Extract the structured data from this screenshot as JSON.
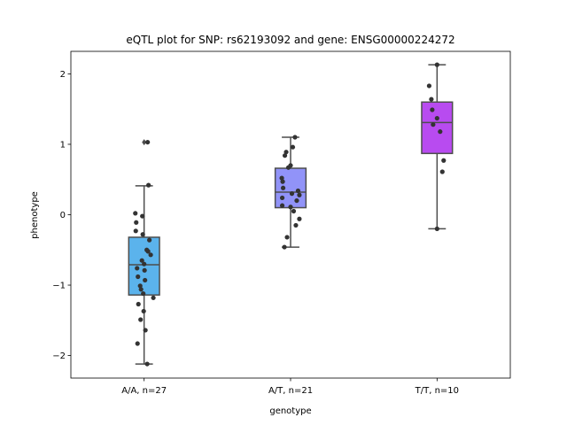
{
  "chart_data": {
    "type": "box",
    "title": "eQTL plot for SNP: rs62193092 and gene: ENSG00000224272",
    "xlabel": "genotype",
    "ylabel": "phenotype",
    "ylim": [
      -2.32,
      2.32
    ],
    "yticks": [
      {
        "value": -2,
        "label": "−2"
      },
      {
        "value": -1,
        "label": "−1"
      },
      {
        "value": 0,
        "label": "0"
      },
      {
        "value": 1,
        "label": "1"
      },
      {
        "value": 2,
        "label": "2"
      }
    ],
    "grid": false,
    "colors": {
      "line": "#4d4d4d",
      "point": "#333333"
    },
    "categories": [
      "A/A, n=27",
      "A/T, n=21",
      "T/T, n=10"
    ],
    "boxes": [
      {
        "category": "A/A, n=27",
        "color": "#5bb3ec",
        "q1": -1.14,
        "median": -0.71,
        "q3": -0.32,
        "whisker_low": -2.12,
        "whisker_high": 0.41,
        "outliers": [
          1.03
        ],
        "points": [
          [
            -0.2,
            0.02
          ],
          [
            -0.18,
            -0.11
          ],
          [
            -0.19,
            -0.23
          ],
          [
            -0.04,
            -0.02
          ],
          [
            0.1,
            0.42
          ],
          [
            0.08,
            1.03
          ],
          [
            -0.03,
            -0.28
          ],
          [
            0.12,
            -0.36
          ],
          [
            0.09,
            -0.52
          ],
          [
            0.15,
            -0.57
          ],
          [
            -0.05,
            -0.65
          ],
          [
            -0.16,
            -0.76
          ],
          [
            0.01,
            -0.79
          ],
          [
            -0.14,
            -0.88
          ],
          [
            0.02,
            -0.93
          ],
          [
            -0.09,
            -1.01
          ],
          [
            -0.07,
            -1.06
          ],
          [
            0.21,
            -1.18
          ],
          [
            -0.02,
            -1.12
          ],
          [
            -0.13,
            -1.27
          ],
          [
            -0.01,
            -1.37
          ],
          [
            -0.08,
            -1.49
          ],
          [
            0.03,
            -1.64
          ],
          [
            -0.15,
            -1.83
          ],
          [
            0.07,
            -2.12
          ],
          [
            0.0,
            -0.7
          ],
          [
            0.06,
            -0.5
          ]
        ]
      },
      {
        "category": "A/T, n=21",
        "color": "#9193f8",
        "q1": 0.1,
        "median": 0.32,
        "q3": 0.66,
        "whisker_low": -0.46,
        "whisker_high": 1.1,
        "outliers": [],
        "points": [
          [
            0.1,
            1.1
          ],
          [
            0.05,
            0.96
          ],
          [
            -0.1,
            0.89
          ],
          [
            -0.13,
            0.84
          ],
          [
            -0.05,
            0.67
          ],
          [
            0.0,
            0.7
          ],
          [
            -0.2,
            0.52
          ],
          [
            -0.18,
            0.47
          ],
          [
            -0.17,
            0.38
          ],
          [
            0.17,
            0.34
          ],
          [
            0.2,
            0.28
          ],
          [
            -0.19,
            0.24
          ],
          [
            0.14,
            0.2
          ],
          [
            -0.19,
            0.13
          ],
          [
            0.0,
            0.11
          ],
          [
            0.07,
            0.05
          ],
          [
            0.2,
            -0.06
          ],
          [
            0.12,
            -0.15
          ],
          [
            -0.08,
            -0.32
          ],
          [
            -0.14,
            -0.46
          ],
          [
            0.03,
            0.3
          ]
        ]
      },
      {
        "category": "T/T, n=10",
        "color": "#b84bf0",
        "q1": 0.87,
        "median": 1.31,
        "q3": 1.6,
        "whisker_low": -0.2,
        "whisker_high": 2.13,
        "outliers": [],
        "points": [
          [
            0.0,
            2.13
          ],
          [
            -0.18,
            1.83
          ],
          [
            -0.13,
            1.64
          ],
          [
            -0.11,
            1.49
          ],
          [
            0.0,
            1.37
          ],
          [
            -0.09,
            1.28
          ],
          [
            0.07,
            1.18
          ],
          [
            0.15,
            0.77
          ],
          [
            0.12,
            0.61
          ],
          [
            0.0,
            -0.2
          ]
        ]
      }
    ]
  }
}
